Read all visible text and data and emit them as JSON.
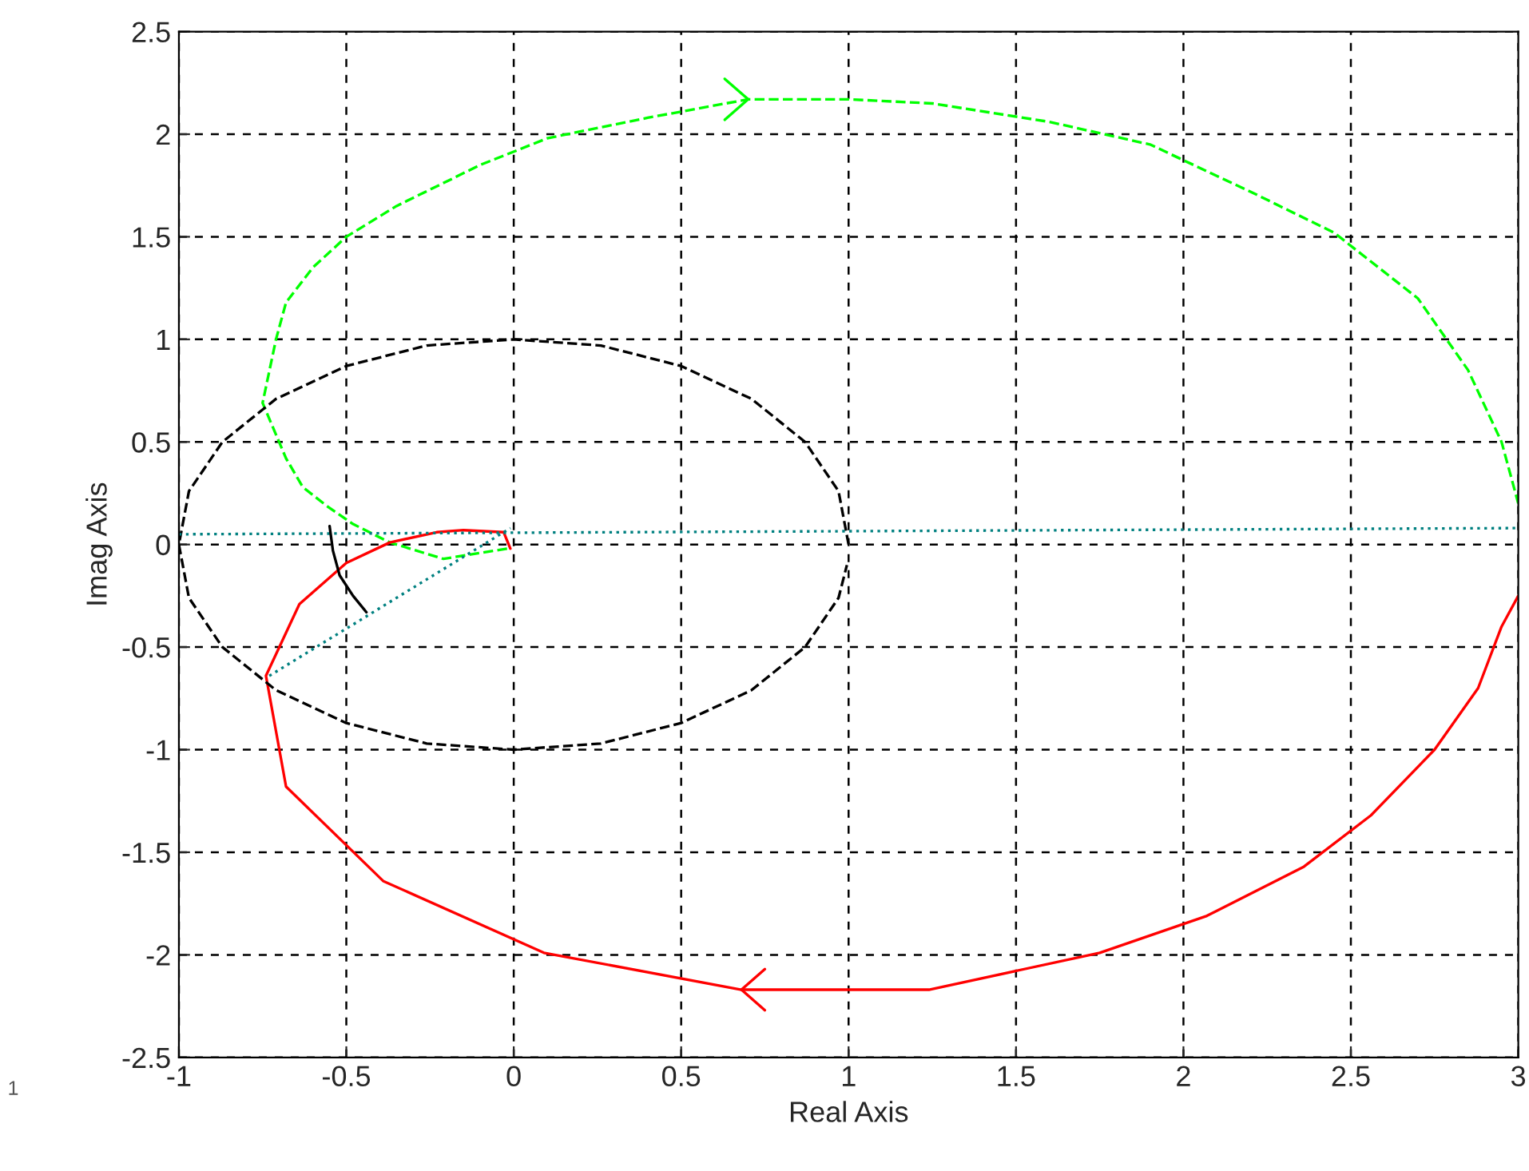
{
  "chart_data": {
    "type": "line",
    "xlabel": "Real Axis",
    "ylabel": "Imag Axis",
    "xlim": [
      -1,
      3
    ],
    "xticks": [
      -1,
      -0.5,
      0,
      0.5,
      1,
      1.5,
      2,
      2.5,
      3
    ],
    "ylim": [
      -2.5,
      2.5
    ],
    "yticks": [
      -2.5,
      -2,
      -1.5,
      -1,
      -0.5,
      0,
      0.5,
      1,
      1.5,
      2,
      2.5
    ],
    "grid": true,
    "legend": false,
    "annotations": [
      "1"
    ],
    "series": [
      {
        "color": "#00ff00",
        "line_style": "dashed",
        "x": [
          -0.02,
          -0.21,
          -0.37,
          -0.48,
          -0.56,
          -0.63,
          -0.68,
          -0.75,
          -0.71,
          -0.68,
          -0.6,
          -0.5,
          -0.35,
          -0.1,
          0.1,
          0.4,
          0.7,
          1.0,
          1.25,
          1.6,
          1.9,
          2.2,
          2.45,
          2.7,
          2.85,
          2.95,
          3.0
        ],
        "values": [
          -0.02,
          -0.07,
          0.01,
          0.1,
          0.19,
          0.28,
          0.42,
          0.69,
          1.0,
          1.18,
          1.35,
          1.5,
          1.65,
          1.85,
          1.98,
          2.08,
          2.17,
          2.17,
          2.15,
          2.06,
          1.95,
          1.72,
          1.52,
          1.2,
          0.85,
          0.5,
          0.2
        ]
      },
      {
        "color": "#ff0000",
        "line_style": "solid",
        "x": [
          -0.01,
          -0.03,
          -0.15,
          -0.23,
          -0.37,
          -0.5,
          -0.64,
          -0.74,
          -0.68,
          -0.39,
          0.09,
          0.68,
          1.24,
          1.75,
          2.07,
          2.36,
          2.56,
          2.75,
          2.88,
          2.95,
          3.0
        ],
        "values": [
          -0.02,
          0.06,
          0.07,
          0.06,
          0.01,
          -0.09,
          -0.29,
          -0.64,
          -1.18,
          -1.64,
          -1.99,
          -2.17,
          -2.17,
          -1.99,
          -1.81,
          -1.57,
          -1.32,
          -1.0,
          -0.7,
          -0.4,
          -0.25
        ]
      },
      {
        "color": "#000000",
        "line_style": "dashed",
        "x": [
          1.0,
          0.97,
          0.87,
          0.71,
          0.5,
          0.26,
          0.0,
          -0.26,
          -0.5,
          -0.71,
          -0.87,
          -0.97,
          -1.0,
          -0.97,
          -0.87,
          -0.71,
          -0.5,
          -0.26,
          0.0,
          0.26,
          0.5,
          0.71,
          0.87,
          0.97,
          0.995
        ],
        "values": [
          0.0,
          0.26,
          0.5,
          0.71,
          0.87,
          0.97,
          1.0,
          0.97,
          0.87,
          0.71,
          0.5,
          0.26,
          0.0,
          -0.26,
          -0.5,
          -0.71,
          -0.87,
          -0.97,
          -1.0,
          -0.97,
          -0.87,
          -0.71,
          -0.5,
          -0.26,
          -0.1
        ]
      },
      {
        "color": "#008080",
        "line_style": "dotted",
        "x": [
          -1,
          3
        ],
        "values": [
          0.05,
          0.08
        ]
      },
      {
        "color": "#008080",
        "line_style": "dotted",
        "x": [
          -0.73,
          -0.01
        ],
        "values": [
          -0.64,
          0.08
        ]
      },
      {
        "color": "#000000",
        "line_style": "solid",
        "x": [
          -0.55,
          -0.54,
          -0.52,
          -0.48,
          -0.44
        ],
        "values": [
          0.09,
          -0.03,
          -0.15,
          -0.25,
          -0.33
        ]
      }
    ]
  }
}
